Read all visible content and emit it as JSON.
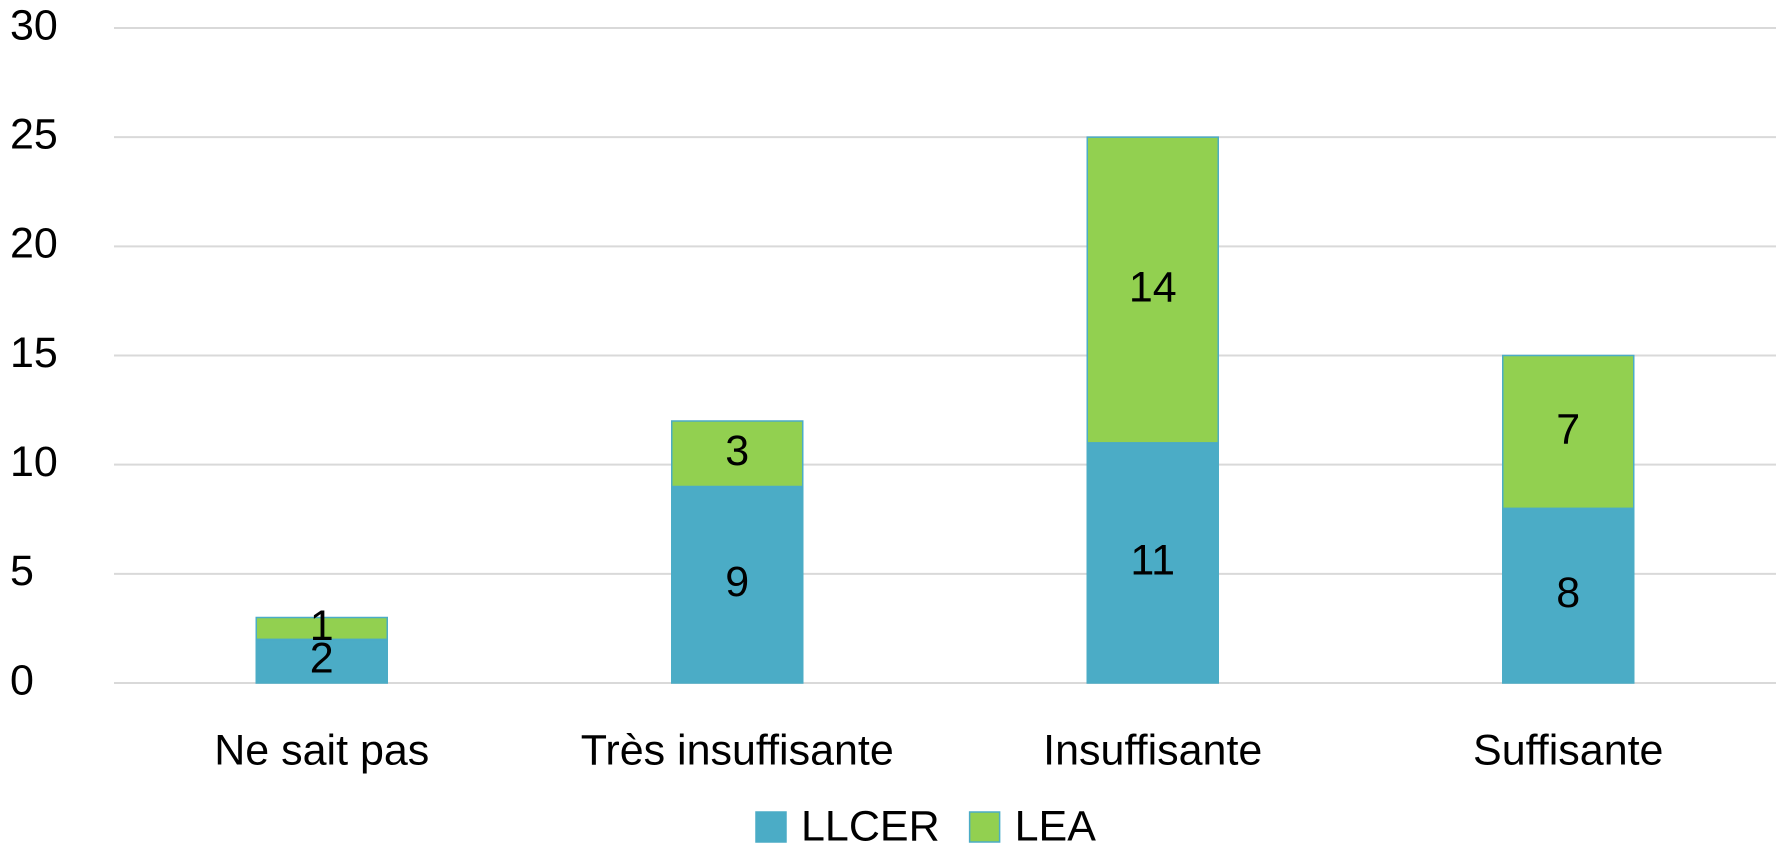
{
  "chart_data": {
    "type": "stacked_bar",
    "categories": [
      "Ne sait pas",
      "Très insuffisante",
      "Insuffisante",
      "Suffisante"
    ],
    "series": [
      {
        "name": "LLCER",
        "color": "#4bacc6",
        "values": [
          2,
          9,
          11,
          8
        ]
      },
      {
        "name": "LEA",
        "color": "#92d050",
        "values": [
          1,
          3,
          14,
          7
        ]
      }
    ],
    "ylim": [
      0,
      30
    ],
    "yticks": [
      0,
      5,
      10,
      15,
      20,
      25,
      30
    ],
    "grid": true,
    "legend": "bottom"
  }
}
